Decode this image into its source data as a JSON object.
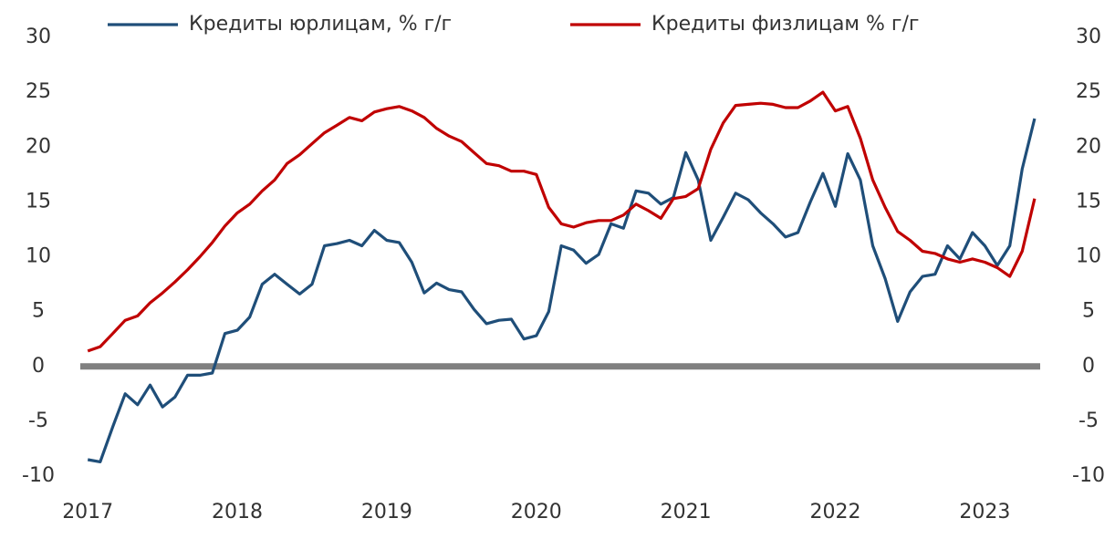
{
  "chart_data": {
    "type": "line",
    "x": [
      2017,
      2017.083,
      2017.167,
      2017.25,
      2017.333,
      2017.417,
      2017.5,
      2017.583,
      2017.667,
      2017.75,
      2017.833,
      2017.917,
      2018,
      2018.083,
      2018.167,
      2018.25,
      2018.333,
      2018.417,
      2018.5,
      2018.583,
      2018.667,
      2018.75,
      2018.833,
      2018.917,
      2019,
      2019.083,
      2019.167,
      2019.25,
      2019.333,
      2019.417,
      2019.5,
      2019.583,
      2019.667,
      2019.75,
      2019.833,
      2019.917,
      2020,
      2020.083,
      2020.167,
      2020.25,
      2020.333,
      2020.417,
      2020.5,
      2020.583,
      2020.667,
      2020.75,
      2020.833,
      2020.917,
      2021,
      2021.083,
      2021.167,
      2021.25,
      2021.333,
      2021.417,
      2021.5,
      2021.583,
      2021.667,
      2021.75,
      2021.833,
      2021.917,
      2022,
      2022.083,
      2022.167,
      2022.25,
      2022.333,
      2022.417,
      2022.5,
      2022.583,
      2022.667,
      2022.75,
      2022.833,
      2022.917,
      2023,
      2023.083,
      2023.167,
      2023.25,
      2023.333
    ],
    "series": [
      {
        "name": "Кредиты юрлицам, % г/г",
        "color": "#1f4e79",
        "values": [
          -8.5,
          -8.7,
          -5.5,
          -2.5,
          -3.5,
          -1.7,
          -3.7,
          -2.8,
          -0.8,
          -0.8,
          -0.6,
          3.0,
          3.3,
          4.5,
          7.5,
          8.4,
          7.5,
          6.6,
          7.5,
          11,
          11.2,
          11.5,
          11,
          12.4,
          11.5,
          11.3,
          9.5,
          6.7,
          7.6,
          7,
          6.8,
          5.2,
          3.9,
          4.2,
          4.3,
          2.5,
          2.8,
          5,
          11,
          10.6,
          9.4,
          10.2,
          13,
          12.6,
          16,
          15.8,
          14.8,
          15.4,
          19.5,
          17,
          11.5,
          13.6,
          15.8,
          15.2,
          14,
          13,
          11.8,
          12.2,
          15,
          17.6,
          14.6,
          19.4,
          17,
          11,
          8,
          4.1,
          6.8,
          8.2,
          8.4,
          11,
          9.8,
          12.2,
          11,
          9.2,
          11,
          18,
          22.6
        ]
      },
      {
        "name": "Кредиты физлицам % г/г",
        "color": "#c00000",
        "values": [
          1.4,
          1.8,
          3,
          4.2,
          4.6,
          5.8,
          6.7,
          7.7,
          8.8,
          10,
          11.3,
          12.8,
          14,
          14.8,
          16,
          17,
          18.5,
          19.3,
          20.3,
          21.3,
          22,
          22.7,
          22.4,
          23.2,
          23.5,
          23.7,
          23.3,
          22.7,
          21.7,
          21,
          20.5,
          19.5,
          18.5,
          18.3,
          17.8,
          17.8,
          17.5,
          14.5,
          13,
          12.7,
          13.1,
          13.3,
          13.3,
          13.8,
          14.8,
          14.2,
          13.5,
          15.3,
          15.5,
          16.2,
          19.8,
          22.2,
          23.8,
          23.9,
          24,
          23.9,
          23.6,
          23.6,
          24.2,
          25,
          23.3,
          23.7,
          20.8,
          17,
          14.5,
          12.3,
          11.5,
          10.5,
          10.3,
          9.8,
          9.5,
          9.8,
          9.5,
          9.0,
          8.2,
          10.5,
          15.3
        ]
      }
    ],
    "xlim": [
      2016.95,
      2023.37
    ],
    "xticks": [
      2017,
      2018,
      2019,
      2020,
      2021,
      2022,
      2023
    ],
    "ylim": [
      -10,
      30
    ],
    "yticks": [
      -10,
      -5,
      0,
      5,
      10,
      15,
      20,
      25,
      30
    ],
    "y2lim": [
      -10,
      30
    ],
    "y2ticks": [
      -10,
      -5,
      0,
      5,
      10,
      15,
      20,
      25,
      30
    ],
    "zero_line": true,
    "legend": "top"
  }
}
